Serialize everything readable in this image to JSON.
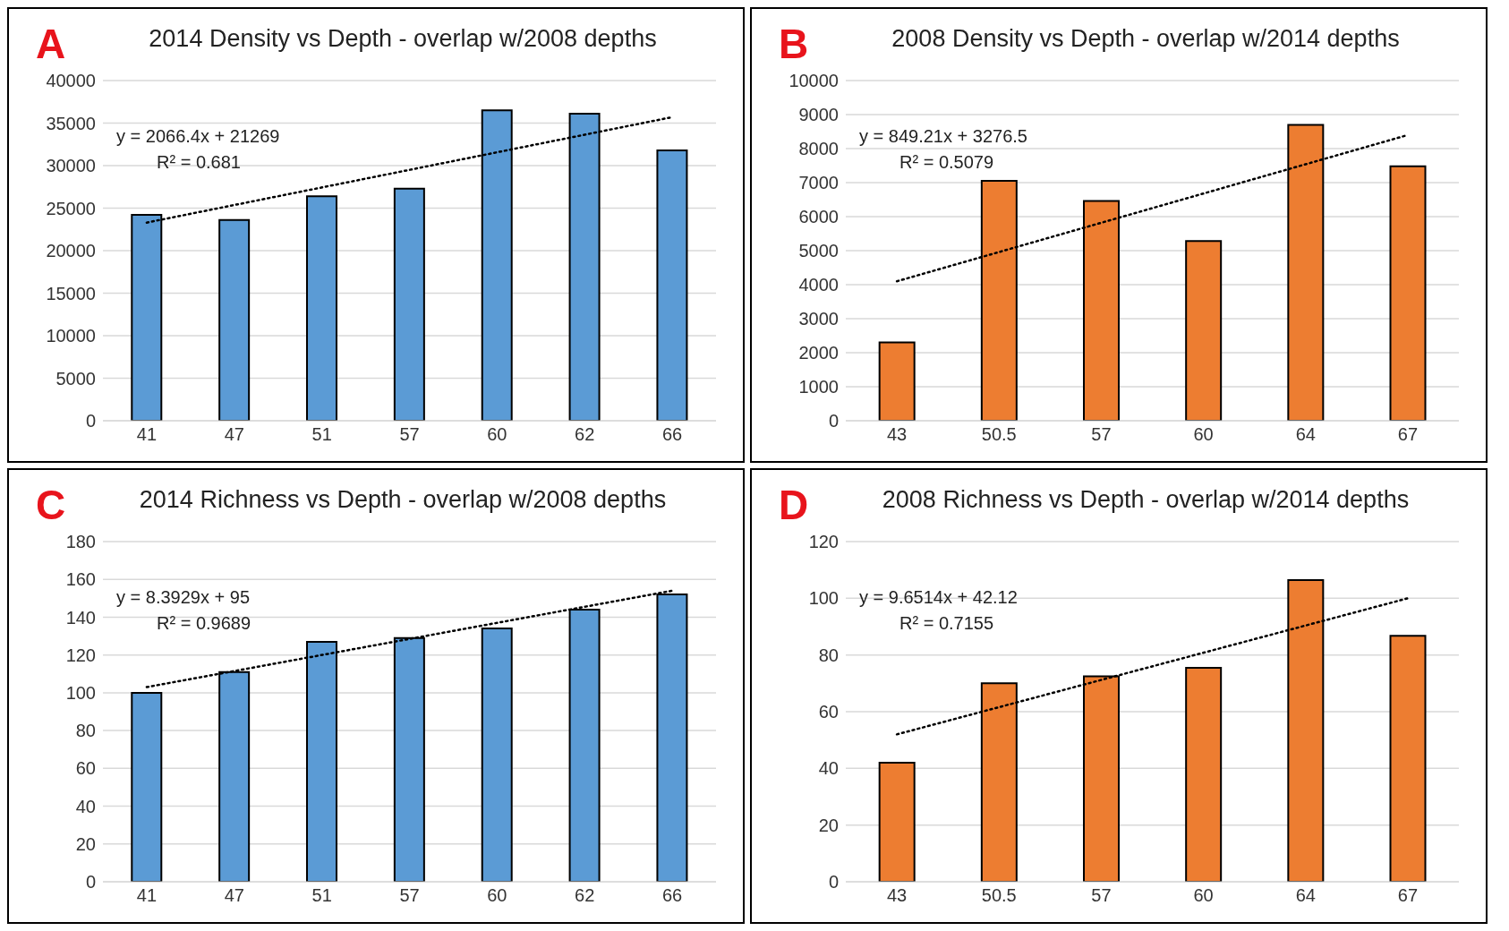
{
  "chart_data": [
    {
      "type": "bar",
      "title": "2014 Density vs Depth - overlap w/2008 depths",
      "annotations": [
        "A",
        "y = 2066.4x + 21269",
        "R² = 0.681"
      ],
      "categories": [
        "41",
        "47",
        "51",
        "57",
        "60",
        "62",
        "66"
      ],
      "series": [
        {
          "color": "#5b9bd5",
          "values": [
            24200,
            23600,
            26400,
            27300,
            36500,
            36100,
            31800
          ]
        },
        {
          "type": "line",
          "color": "#000000",
          "line_style": "dotted",
          "marker": "none",
          "values": [
            23300,
            null,
            null,
            null,
            null,
            null,
            35700
          ]
        }
      ],
      "ylim": [
        0,
        40000
      ],
      "yticks": [
        0,
        5000,
        10000,
        15000,
        20000,
        25000,
        30000,
        35000,
        40000
      ],
      "grid": "y",
      "legend": false
    },
    {
      "type": "bar",
      "title": "2008 Density vs Depth - overlap w/2014 depths",
      "annotations": [
        "B",
        "y = 849.21x + 3276.5",
        "R² = 0.5079"
      ],
      "categories": [
        "43",
        "50.5",
        "57",
        "60",
        "64",
        "67"
      ],
      "series": [
        {
          "color": "#ed7d31",
          "values": [
            2300,
            7050,
            6460,
            5280,
            8700,
            7480
          ]
        },
        {
          "type": "line",
          "color": "#000000",
          "line_style": "dotted",
          "marker": "none",
          "values": [
            4100,
            null,
            null,
            null,
            null,
            8400
          ]
        }
      ],
      "ylim": [
        0,
        10000
      ],
      "yticks": [
        0,
        1000,
        2000,
        3000,
        4000,
        5000,
        6000,
        7000,
        8000,
        9000,
        10000
      ],
      "grid": "y",
      "legend": false
    },
    {
      "type": "bar",
      "title": "2014 Richness vs Depth - overlap w/2008 depths",
      "annotations": [
        "C",
        "y = 8.3929x + 95",
        "R² = 0.9689"
      ],
      "categories": [
        "41",
        "47",
        "51",
        "57",
        "60",
        "62",
        "66"
      ],
      "series": [
        {
          "color": "#5b9bd5",
          "values": [
            100,
            111,
            127,
            129,
            134,
            144,
            152
          ]
        },
        {
          "type": "line",
          "color": "#000000",
          "line_style": "dotted",
          "marker": "none",
          "values": [
            103,
            null,
            null,
            null,
            null,
            null,
            154
          ]
        }
      ],
      "ylim": [
        0,
        180
      ],
      "yticks": [
        0,
        20,
        40,
        60,
        80,
        100,
        120,
        140,
        160,
        180
      ],
      "grid": "y",
      "legend": false
    },
    {
      "type": "bar",
      "title": "2008 Richness vs Depth - overlap w/2014 depths",
      "annotations": [
        "D",
        "y = 9.6514x + 42.12",
        "R² = 0.7155"
      ],
      "categories": [
        "43",
        "50.5",
        "57",
        "60",
        "64",
        "67"
      ],
      "series": [
        {
          "color": "#ed7d31",
          "values": [
            42,
            70,
            72.5,
            75.5,
            106.4,
            86.8
          ]
        },
        {
          "type": "line",
          "color": "#000000",
          "line_style": "dotted",
          "marker": "none",
          "values": [
            52,
            null,
            null,
            null,
            null,
            100
          ]
        }
      ],
      "ylim": [
        0,
        120
      ],
      "yticks": [
        0,
        20,
        40,
        60,
        80,
        100,
        120
      ],
      "grid": "y",
      "legend": false
    }
  ]
}
